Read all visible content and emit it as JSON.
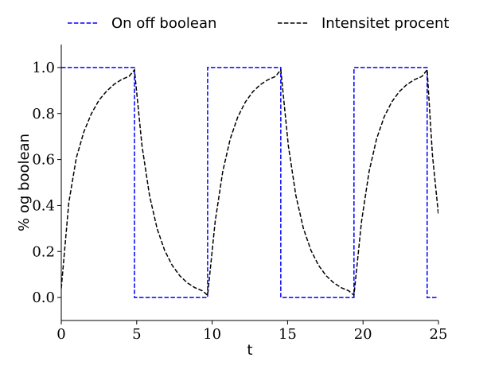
{
  "chart_data": {
    "type": "line",
    "title": "",
    "xlabel": "t",
    "ylabel": "% og boolean",
    "xlim": [
      0,
      25
    ],
    "ylim": [
      -0.1,
      1.1
    ],
    "x_ticks": [
      "0",
      "5",
      "10",
      "15",
      "20",
      "25"
    ],
    "y_ticks": [
      "0.0",
      "0.2",
      "0.4",
      "0.6",
      "0.8",
      "1.0"
    ],
    "grid": false,
    "legend": {
      "placement": "top, above plot",
      "entries": [
        "On off boolean",
        "Intensitet procent"
      ]
    },
    "series": [
      {
        "name": "On off boolean",
        "color": "#0000ff",
        "style": "dashed",
        "x": [
          0,
          4.85,
          4.85,
          9.7,
          9.7,
          14.55,
          14.55,
          19.4,
          19.4,
          24.25,
          24.25,
          25
        ],
        "y": [
          1,
          1,
          0,
          0,
          1,
          1,
          0,
          0,
          1,
          1,
          0,
          0
        ]
      },
      {
        "name": "Intensitet procent",
        "color": "#000000",
        "style": "dashed",
        "x": [
          0,
          0.5,
          1,
          1.5,
          2,
          2.5,
          3,
          3.5,
          4,
          4.5,
          4.85,
          5.35,
          5.85,
          6.35,
          6.85,
          7.35,
          7.85,
          8.35,
          8.85,
          9.35,
          9.7,
          10.2,
          10.7,
          11.2,
          11.7,
          12.2,
          12.7,
          13.2,
          13.7,
          14.2,
          14.55,
          15.05,
          15.55,
          16.05,
          16.55,
          17.05,
          17.55,
          18.05,
          18.55,
          19.05,
          19.4,
          19.9,
          20.4,
          20.9,
          21.4,
          21.9,
          22.4,
          22.9,
          23.4,
          23.9,
          24.25,
          24.6,
          25
        ],
        "y": [
          0.04,
          0.413,
          0.608,
          0.721,
          0.8,
          0.858,
          0.897,
          0.927,
          0.948,
          0.962,
          0.99,
          0.66,
          0.443,
          0.3,
          0.205,
          0.14,
          0.095,
          0.064,
          0.043,
          0.029,
          0.01,
          0.33,
          0.547,
          0.69,
          0.785,
          0.85,
          0.895,
          0.926,
          0.947,
          0.961,
          0.99,
          0.66,
          0.443,
          0.3,
          0.205,
          0.14,
          0.095,
          0.064,
          0.043,
          0.029,
          0.01,
          0.33,
          0.547,
          0.69,
          0.785,
          0.85,
          0.895,
          0.926,
          0.947,
          0.961,
          0.99,
          0.62,
          0.36
        ]
      }
    ]
  }
}
